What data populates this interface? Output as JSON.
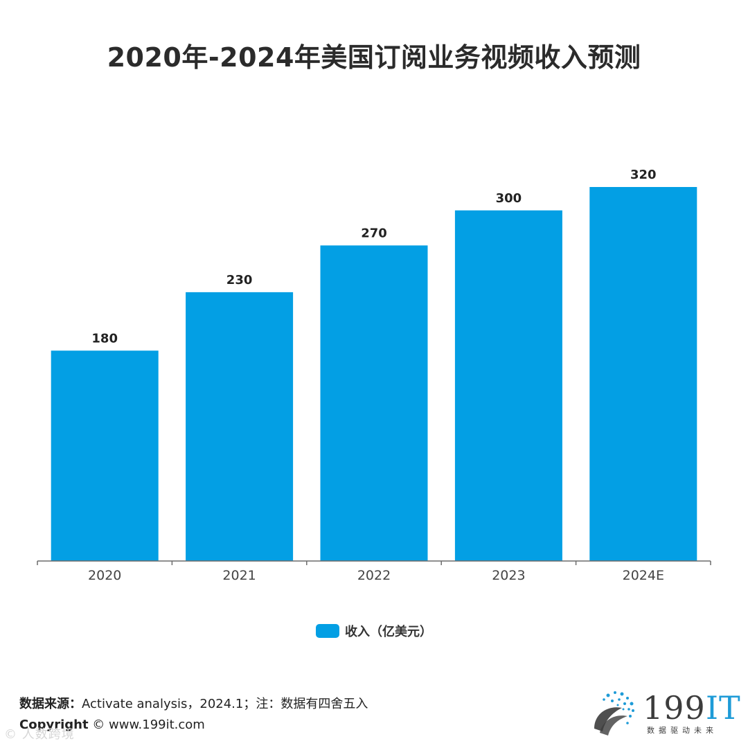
{
  "title": "2020年-2024年美国订阅业务视频收入预测",
  "chart_data": {
    "type": "bar",
    "categories": [
      "2020",
      "2021",
      "2022",
      "2023",
      "2024E"
    ],
    "series": [
      {
        "name": "收入（亿美元）",
        "values": [
          180,
          230,
          270,
          300,
          320
        ],
        "color": "#039fe4"
      }
    ],
    "data_labels": [
      "180",
      "230",
      "270",
      "300",
      "320"
    ],
    "ylim": [
      0,
      320
    ],
    "grid": false,
    "legend_position": "bottom-center"
  },
  "legend": {
    "label": "收入（亿美元）"
  },
  "footer": {
    "source_key": "数据来源：",
    "source_text": "Activate analysis，2024.1；注：数据有四舍五入",
    "copyright_key": "Copyright",
    "copyright_text": "© www.199it.com"
  },
  "watermark": "© 人数跨境",
  "brand": {
    "name_num": "199",
    "name_it": "IT",
    "slogan": "数据驱动未来"
  }
}
